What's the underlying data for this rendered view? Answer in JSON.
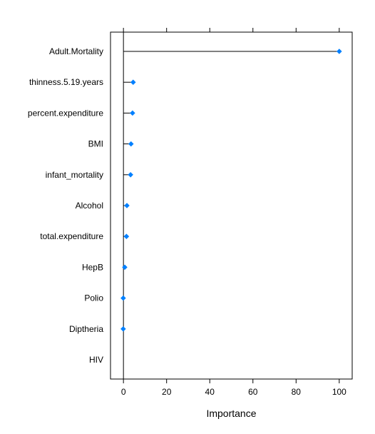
{
  "chart_data": {
    "type": "dotplot",
    "orientation": "horizontal",
    "categories": [
      "Adult.Mortality",
      "thinness.5.19.years",
      "percent.expenditure",
      "BMI",
      "infant_mortality",
      "Alcohol",
      "total.expenditure",
      "HepB",
      "Polio",
      "Diptheria",
      "HIV"
    ],
    "values": [
      100,
      4.5,
      4.2,
      3.5,
      3.3,
      1.6,
      1.4,
      0.6,
      -0.1,
      -0.1,
      null
    ],
    "xlabel": "Importance",
    "xlim": [
      -6,
      106
    ],
    "xticks": [
      0,
      20,
      40,
      60,
      80,
      100
    ],
    "marker_color": "#0080ff",
    "grid": false
  }
}
